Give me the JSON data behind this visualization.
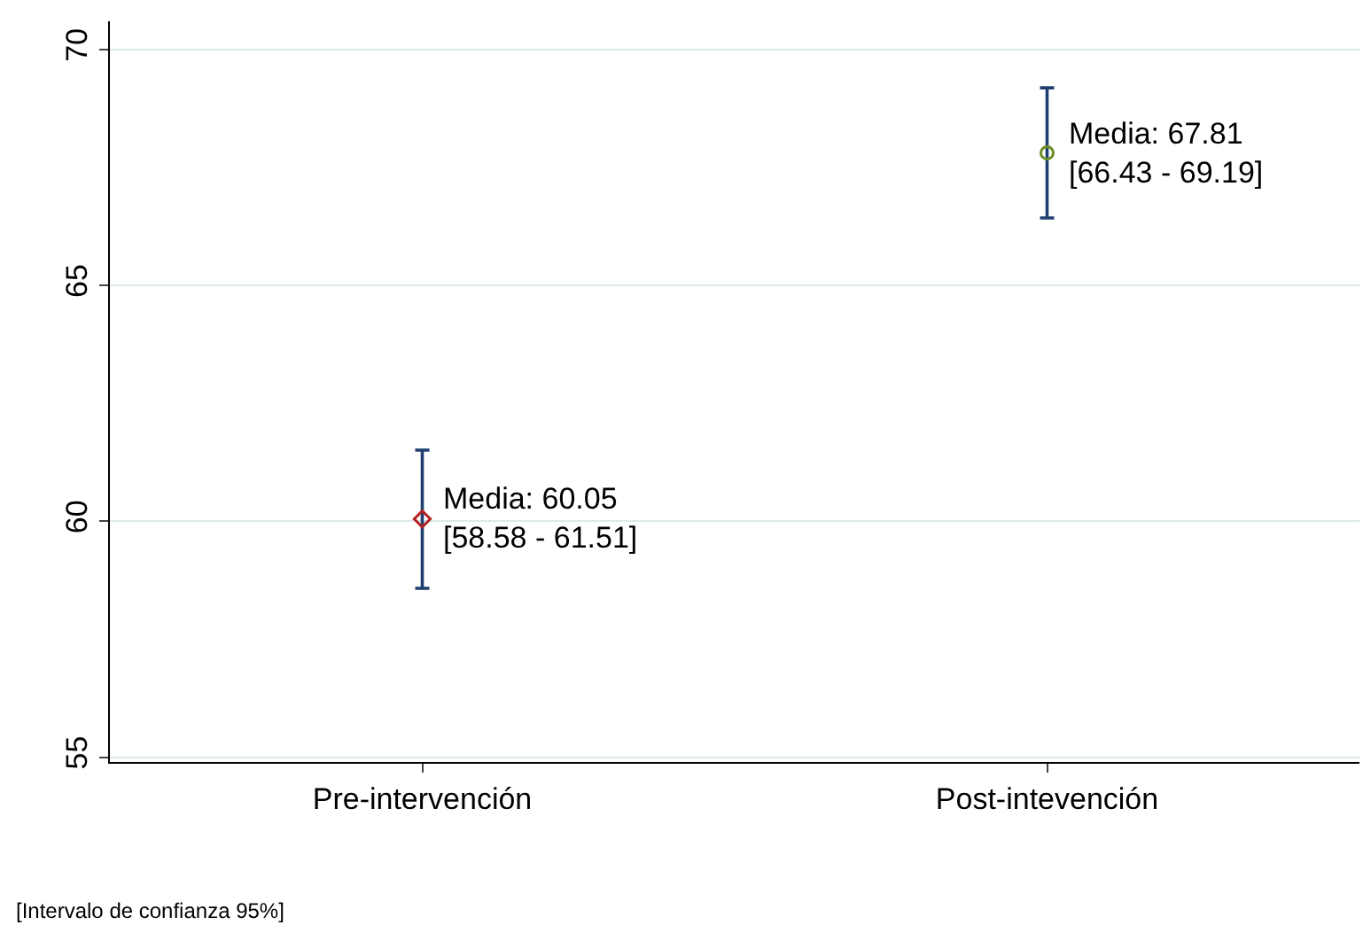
{
  "chart_data": {
    "type": "scatter",
    "categories": [
      "Pre-intervención",
      "Post-intevención"
    ],
    "series": [
      {
        "color": "#b22222",
        "marker": "diamond",
        "values": [
          60.05,
          null
        ],
        "errors": [
          [
            58.58,
            61.51
          ],
          null
        ]
      },
      {
        "color": "#6b8e23",
        "marker": "circle",
        "values": [
          null,
          67.81
        ],
        "errors": [
          null,
          [
            66.43,
            69.19
          ]
        ]
      }
    ],
    "ylim": [
      54.9,
      70.6
    ],
    "yticks": [
      55,
      60,
      65,
      70
    ],
    "grid": "y",
    "annotations": [
      {
        "text": "Media: 60.05\n[58.58 - 61.51]",
        "x": "Pre-intervención",
        "y": 60.05
      },
      {
        "text": "Media: 67.81\n[66.43 - 69.19]",
        "x": "Post-intevención",
        "y": 67.81
      },
      "[Intervalo de confianza 95%]"
    ]
  }
}
